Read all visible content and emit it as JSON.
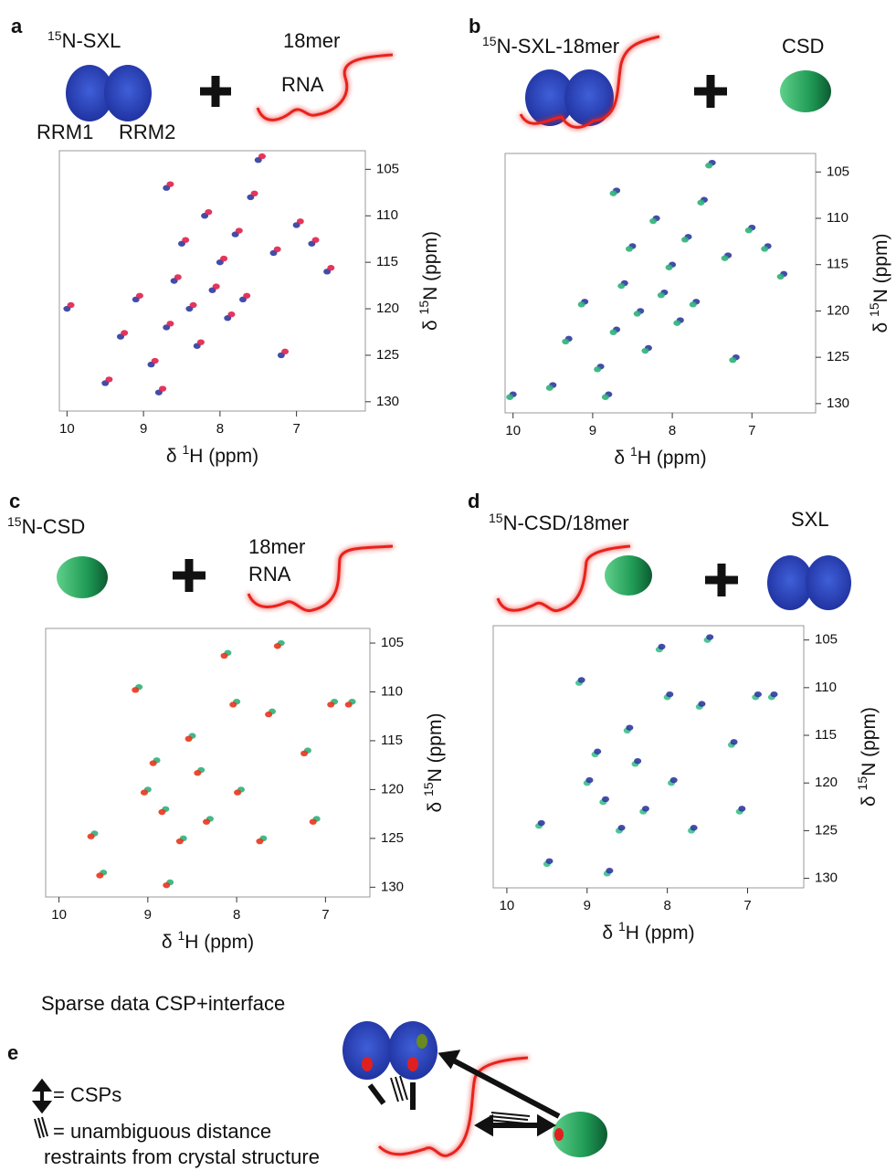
{
  "chart_data": [
    {
      "type": "scatter",
      "xlim": [
        10.1,
        6.1
      ],
      "ylim": [
        131,
        103
      ],
      "xticks": [
        10,
        9,
        8,
        7
      ],
      "yticks": [
        105,
        110,
        115,
        120,
        125,
        130
      ],
      "xlabel": {
        "pre": "δ ",
        "sup": "1",
        "post": "H (ppm)"
      },
      "ylabel": {
        "pre": "δ ",
        "sup": "15",
        "post": "N (ppm)"
      },
      "series": [
        {
          "color": "#2d3a9e",
          "x": [
            10.0,
            9.5,
            9.3,
            9.1,
            8.9,
            8.8,
            8.7,
            8.6,
            8.5,
            8.4,
            8.3,
            8.2,
            8.1,
            8.0,
            7.9,
            7.8,
            7.7,
            7.6,
            7.5,
            7.3,
            7.0,
            6.8,
            6.6,
            7.2,
            8.7
          ],
          "y": [
            120,
            128,
            123,
            119,
            126,
            129,
            122,
            117,
            113,
            120,
            124,
            110,
            118,
            115,
            121,
            112,
            119,
            108,
            104,
            114,
            111,
            113,
            116,
            125,
            107
          ]
        },
        {
          "color": "#e0204a",
          "x": [
            9.95,
            9.45,
            9.25,
            9.05,
            8.85,
            8.75,
            8.65,
            8.55,
            8.45,
            8.35,
            8.25,
            8.15,
            8.05,
            7.95,
            7.85,
            7.75,
            7.65,
            7.55,
            7.45,
            7.25,
            6.95,
            6.75,
            6.55,
            7.15,
            8.65
          ],
          "y": [
            119.6,
            127.6,
            122.6,
            118.6,
            125.6,
            128.6,
            121.6,
            116.6,
            112.6,
            119.6,
            123.6,
            109.6,
            117.6,
            114.6,
            120.6,
            111.6,
            118.6,
            107.6,
            103.6,
            113.6,
            110.6,
            112.6,
            115.6,
            124.6,
            106.6
          ]
        }
      ]
    },
    {
      "type": "scatter",
      "xlim": [
        10.1,
        6.2
      ],
      "ylim": [
        131,
        103
      ],
      "xticks": [
        10,
        9,
        8,
        7
      ],
      "yticks": [
        105,
        110,
        115,
        120,
        125,
        130
      ],
      "xlabel": {
        "pre": "δ ",
        "sup": "1",
        "post": "H (ppm)"
      },
      "ylabel": {
        "pre": "δ ",
        "sup": "15",
        "post": "N (ppm)"
      },
      "series": [
        {
          "color": "#2d3a9e",
          "x": [
            10.0,
            9.5,
            9.3,
            9.1,
            8.9,
            8.8,
            8.7,
            8.6,
            8.5,
            8.4,
            8.3,
            8.2,
            8.1,
            8.0,
            7.9,
            7.8,
            7.7,
            7.6,
            7.5,
            7.3,
            7.0,
            6.8,
            6.6,
            7.2,
            8.7
          ],
          "y": [
            129,
            128,
            123,
            119,
            126,
            129,
            122,
            117,
            113,
            120,
            124,
            110,
            118,
            115,
            121,
            112,
            119,
            108,
            104,
            114,
            111,
            113,
            116,
            125,
            107
          ]
        },
        {
          "color": "#2fb07a",
          "x": [
            10.04,
            9.54,
            9.34,
            9.14,
            8.94,
            8.84,
            8.74,
            8.64,
            8.54,
            8.44,
            8.34,
            8.24,
            8.14,
            8.04,
            7.94,
            7.84,
            7.74,
            7.64,
            7.54,
            7.34,
            7.04,
            6.84,
            6.64,
            7.24,
            8.74
          ],
          "y": [
            129.3,
            128.3,
            123.3,
            119.3,
            126.3,
            129.3,
            122.3,
            117.3,
            113.3,
            120.3,
            124.3,
            110.3,
            118.3,
            115.3,
            121.3,
            112.3,
            119.3,
            108.3,
            104.3,
            114.3,
            111.3,
            113.3,
            116.3,
            125.3,
            107.3
          ]
        }
      ]
    },
    {
      "type": "scatter",
      "xlim": [
        10.15,
        6.5
      ],
      "ylim": [
        131,
        103.5
      ],
      "xticks": [
        10,
        9,
        8,
        7
      ],
      "yticks": [
        105,
        110,
        115,
        120,
        125,
        130
      ],
      "xlabel": {
        "pre": "δ ",
        "sup": "1",
        "post": "H (ppm)"
      },
      "ylabel": {
        "pre": "δ ",
        "sup": "15",
        "post": "N (ppm)"
      },
      "series": [
        {
          "color": "#2fb07a",
          "x": [
            9.6,
            9.5,
            9.1,
            9.0,
            8.9,
            8.8,
            8.75,
            8.6,
            8.5,
            8.4,
            8.3,
            8.1,
            8.0,
            7.95,
            7.7,
            7.6,
            7.5,
            7.2,
            7.1,
            6.9,
            6.7
          ],
          "y": [
            124.5,
            128.5,
            109.5,
            120,
            117,
            122,
            129.5,
            125,
            114.5,
            118,
            123,
            106,
            111,
            120,
            125,
            112,
            105,
            116,
            123,
            111,
            111
          ]
        },
        {
          "color": "#e8341c",
          "x": [
            9.64,
            9.54,
            9.14,
            9.04,
            8.94,
            8.84,
            8.79,
            8.64,
            8.54,
            8.44,
            8.34,
            8.14,
            8.04,
            7.99,
            7.74,
            7.64,
            7.54,
            7.24,
            7.14,
            6.94,
            6.74
          ],
          "y": [
            124.8,
            128.8,
            109.8,
            120.3,
            117.3,
            122.3,
            129.8,
            125.3,
            114.8,
            118.3,
            123.3,
            106.3,
            111.3,
            120.3,
            125.3,
            112.3,
            105.3,
            116.3,
            123.3,
            111.3,
            111.3
          ]
        }
      ]
    },
    {
      "type": "scatter",
      "xlim": [
        10.17,
        6.3
      ],
      "ylim": [
        131,
        103.5
      ],
      "xticks": [
        10,
        9,
        8,
        7
      ],
      "yticks": [
        105,
        110,
        115,
        120,
        125,
        130
      ],
      "xlabel": {
        "pre": "δ ",
        "sup": "1",
        "post": "H (ppm)"
      },
      "ylabel": {
        "pre": "δ ",
        "sup": "15",
        "post": "N (ppm)"
      },
      "series": [
        {
          "color": "#3cc08a",
          "x": [
            9.6,
            9.5,
            9.1,
            9.0,
            8.9,
            8.8,
            8.75,
            8.6,
            8.5,
            8.4,
            8.3,
            8.1,
            8.0,
            7.95,
            7.7,
            7.6,
            7.5,
            7.2,
            7.1,
            6.9,
            6.7
          ],
          "y": [
            124.5,
            128.5,
            109.5,
            120,
            117,
            122,
            129.5,
            125,
            114.5,
            118,
            123,
            106,
            111,
            120,
            125,
            112,
            105,
            116,
            123,
            111,
            111
          ]
        },
        {
          "color": "#2d3a9e",
          "x": [
            9.57,
            9.47,
            9.07,
            8.97,
            8.87,
            8.77,
            8.72,
            8.57,
            8.47,
            8.37,
            8.27,
            8.07,
            7.97,
            7.92,
            7.67,
            7.57,
            7.47,
            7.17,
            7.07,
            6.87,
            6.67
          ],
          "y": [
            124.2,
            128.2,
            109.2,
            119.7,
            116.7,
            121.7,
            129.2,
            124.7,
            114.2,
            117.7,
            122.7,
            105.7,
            110.7,
            119.7,
            124.7,
            111.7,
            104.7,
            115.7,
            122.7,
            110.7,
            110.7
          ]
        }
      ]
    }
  ],
  "panel_a": {
    "letter": "a",
    "iso": "15",
    "name": "N-SXL",
    "rna1": "18mer",
    "rna2": "RNA",
    "rrm1": "RRM1",
    "rrm2": "RRM2"
  },
  "panel_b": {
    "letter": "b",
    "iso": "15",
    "name": "N-SXL-18mer",
    "partner": "CSD"
  },
  "panel_c": {
    "letter": "c",
    "iso": "15",
    "name": "N-CSD",
    "rna1": "18mer",
    "rna2": "RNA"
  },
  "panel_d": {
    "letter": "d",
    "iso": "15",
    "name": "N-CSD/18mer",
    "partner": "SXL"
  },
  "panel_e": {
    "letter": "e",
    "title": "Sparse data CSP+interface",
    "csp": "= CSPs",
    "dist1": "= unambiguous distance",
    "dist2": "restraints from crystal structure"
  }
}
